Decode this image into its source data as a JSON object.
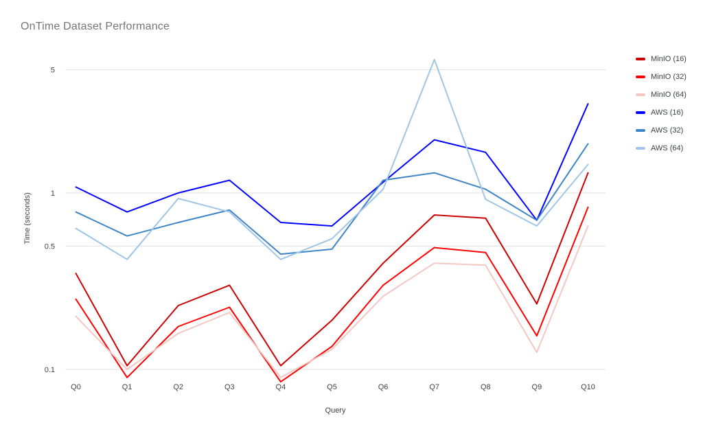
{
  "chart_data": {
    "type": "line",
    "title": "OnTime Dataset Performance",
    "xlabel": "Query",
    "ylabel": "Time (seconds)",
    "yscale": "log",
    "grid": true,
    "legend_position": "right",
    "background_color": "#ffffff",
    "gridline_color": "#e0e0e0",
    "title_color": "#757575",
    "tick_label_color": "#424242",
    "y_ticks": [
      {
        "label": "5",
        "value": 5
      },
      {
        "label": "1",
        "value": 1
      },
      {
        "label": "0.5",
        "value": 0.5
      },
      {
        "label": "0.1",
        "value": 0.1
      }
    ],
    "ylim": [
      0.08,
      6.5
    ],
    "categories": [
      "Q0",
      "Q1",
      "Q2",
      "Q3",
      "Q4",
      "Q5",
      "Q6",
      "Q7",
      "Q8",
      "Q9",
      "Q10"
    ],
    "series": [
      {
        "name": "MinIO (16)",
        "color": "#cc0000",
        "values": [
          0.35,
          0.105,
          0.23,
          0.3,
          0.105,
          0.19,
          0.4,
          0.75,
          0.72,
          0.235,
          1.3
        ]
      },
      {
        "name": "MinIO (32)",
        "color": "#ff0000",
        "values": [
          0.25,
          0.09,
          0.175,
          0.225,
          0.085,
          0.135,
          0.3,
          0.49,
          0.46,
          0.155,
          0.83
        ]
      },
      {
        "name": "MinIO (64)",
        "color": "#f4c7c3",
        "values": [
          0.2,
          0.1,
          0.16,
          0.21,
          0.09,
          0.13,
          0.26,
          0.4,
          0.39,
          0.125,
          0.65
        ]
      },
      {
        "name": "AWS (16)",
        "color": "#0000ff",
        "values": [
          1.08,
          0.78,
          1.0,
          1.18,
          0.68,
          0.65,
          1.15,
          2.0,
          1.7,
          0.7,
          3.2
        ]
      },
      {
        "name": "AWS (32)",
        "color": "#3d85c6",
        "values": [
          0.78,
          0.57,
          0.68,
          0.8,
          0.45,
          0.48,
          1.18,
          1.3,
          1.05,
          0.7,
          1.9
        ]
      },
      {
        "name": "AWS (64)",
        "color": "#9fc5e8",
        "values": [
          0.63,
          0.42,
          0.93,
          0.78,
          0.42,
          0.55,
          1.05,
          5.7,
          0.92,
          0.65,
          1.45
        ]
      }
    ]
  }
}
